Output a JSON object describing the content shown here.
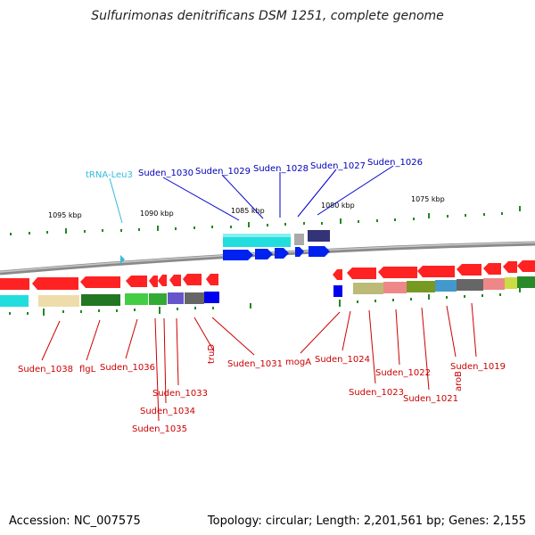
{
  "title": "Sulfurimonas denitrificans DSM 1251, complete genome",
  "footer": {
    "accession": "Accession: NC_007575",
    "topology": "Topology: circular; Length: 2,201,561 bp; Genes: 2,155"
  },
  "colors": {
    "forward_gene": "#ff0000",
    "reverse_gene_upper": "#0000ee",
    "label_red": "#cc0000",
    "label_blue": "#0000bb",
    "label_trna": "#33bbdd",
    "tick": "#228822",
    "backbone": "#888888"
  },
  "scale_labels": [
    "1095 kbp",
    "1090 kbp",
    "1085 kbp",
    "1080 kbp",
    "1075 kbp"
  ],
  "features": {
    "top": [
      {
        "name": "tRNA-Leu3",
        "color": "trna"
      },
      {
        "name": "Suden_1030",
        "color": "blue"
      },
      {
        "name": "Suden_1029",
        "color": "blue"
      },
      {
        "name": "Suden_1028",
        "color": "blue"
      },
      {
        "name": "Suden_1027",
        "color": "blue"
      },
      {
        "name": "Suden_1026",
        "color": "blue"
      }
    ],
    "bottom": [
      {
        "name": "Suden_1038"
      },
      {
        "name": "flgL"
      },
      {
        "name": "Suden_1036"
      },
      {
        "name": "Suden_1035"
      },
      {
        "name": "Suden_1034"
      },
      {
        "name": "Suden_1033"
      },
      {
        "name": "truD"
      },
      {
        "name": "Suden_1031"
      },
      {
        "name": "mogA"
      },
      {
        "name": "Suden_1024"
      },
      {
        "name": "Suden_1023"
      },
      {
        "name": "Suden_1022"
      },
      {
        "name": "Suden_1021"
      },
      {
        "name": "aroB"
      },
      {
        "name": "Suden_1019"
      }
    ]
  }
}
